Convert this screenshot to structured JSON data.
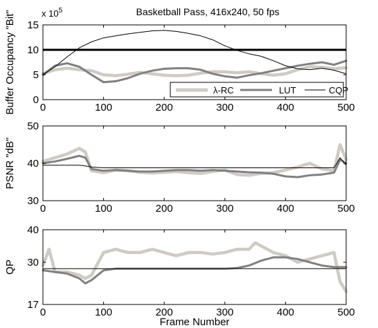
{
  "chart_data": [
    {
      "type": "line",
      "title": "Basketball Pass, 416x240, 50 fps",
      "ylabel": "Buffer Occupancy \"Bit\"",
      "xlabel": "",
      "scale_label": "x 10",
      "scale_exponent": "5",
      "xlim": [
        0,
        500
      ],
      "ylim": [
        0,
        15
      ],
      "xticks": [
        "0",
        "100",
        "200",
        "300",
        "400",
        "500"
      ],
      "yticks": [
        "0",
        "5",
        "10",
        "15"
      ],
      "legend": "bottom-right",
      "reference_line": 10,
      "series": [
        {
          "name": "λ-RC",
          "color": "#cfcbc4",
          "x": [
            0,
            20,
            40,
            60,
            80,
            100,
            120,
            140,
            160,
            180,
            200,
            220,
            240,
            260,
            280,
            300,
            320,
            340,
            360,
            380,
            400,
            420,
            440,
            460,
            480,
            500
          ],
          "y": [
            5.2,
            6.0,
            6.3,
            6.0,
            5.8,
            5.0,
            4.8,
            5.1,
            5.5,
            5.2,
            4.9,
            4.8,
            4.9,
            5.3,
            5.6,
            5.6,
            5.4,
            5.6,
            5.2,
            4.9,
            5.2,
            6.0,
            6.6,
            6.5,
            6.2,
            6.4
          ]
        },
        {
          "name": "LUT",
          "color": "#808080",
          "x": [
            0,
            20,
            40,
            60,
            80,
            100,
            120,
            140,
            160,
            180,
            200,
            220,
            240,
            260,
            280,
            300,
            320,
            340,
            360,
            380,
            400,
            420,
            440,
            460,
            480,
            500
          ],
          "y": [
            5.0,
            6.8,
            7.3,
            6.6,
            5.0,
            3.5,
            3.7,
            4.3,
            5.2,
            5.8,
            6.2,
            6.3,
            6.3,
            6.0,
            5.2,
            4.7,
            4.4,
            4.9,
            5.3,
            5.8,
            6.3,
            6.8,
            7.2,
            7.5,
            7.0,
            7.8
          ]
        },
        {
          "name": "CQP",
          "color": "#000000",
          "x": [
            0,
            20,
            40,
            60,
            80,
            100,
            120,
            140,
            160,
            180,
            200,
            220,
            240,
            260,
            280,
            300,
            320,
            340,
            360,
            380,
            400,
            420,
            440,
            460,
            480,
            500
          ],
          "y": [
            5.0,
            6.6,
            8.6,
            10.4,
            11.6,
            12.4,
            12.8,
            13.2,
            13.5,
            13.8,
            13.9,
            13.7,
            13.3,
            12.8,
            12.0,
            10.8,
            9.9,
            9.2,
            8.7,
            7.8,
            6.8,
            6.2,
            6.0,
            6.3,
            5.9,
            5.2
          ]
        }
      ]
    },
    {
      "type": "line",
      "title": "",
      "ylabel": "PSNR \"dB\"",
      "xlabel": "",
      "xlim": [
        0,
        500
      ],
      "ylim": [
        30,
        50
      ],
      "xticks": [
        "0",
        "100",
        "200",
        "300",
        "400",
        "500"
      ],
      "yticks": [
        "30",
        "40",
        "50"
      ],
      "series": [
        {
          "name": "λ-RC",
          "color": "#cfcbc4",
          "x": [
            0,
            20,
            40,
            60,
            70,
            80,
            100,
            120,
            140,
            160,
            180,
            200,
            220,
            240,
            260,
            280,
            300,
            320,
            340,
            360,
            380,
            400,
            420,
            440,
            460,
            480,
            490,
            500
          ],
          "y": [
            40.5,
            41.5,
            42.5,
            44.0,
            43.0,
            38.0,
            37.5,
            38.2,
            38.0,
            37.6,
            37.4,
            37.6,
            37.8,
            37.5,
            37.3,
            37.8,
            38.2,
            37.0,
            36.8,
            37.3,
            37.5,
            38.2,
            39.0,
            40.0,
            38.5,
            38.0,
            45.0,
            41.0
          ]
        },
        {
          "name": "LUT",
          "color": "#808080",
          "x": [
            0,
            20,
            40,
            60,
            70,
            80,
            100,
            120,
            140,
            160,
            180,
            200,
            220,
            240,
            260,
            280,
            300,
            320,
            340,
            360,
            380,
            400,
            420,
            440,
            460,
            480,
            490,
            500
          ],
          "y": [
            40.0,
            40.5,
            41.2,
            42.0,
            41.5,
            38.5,
            38.0,
            38.2,
            38.0,
            37.8,
            37.8,
            38.0,
            38.2,
            38.2,
            38.0,
            38.2,
            38.0,
            37.8,
            37.6,
            37.5,
            37.2,
            36.5,
            36.3,
            36.8,
            37.0,
            37.5,
            41.0,
            40.0
          ]
        },
        {
          "name": "CQP",
          "color": "#000000",
          "x": [
            0,
            20,
            40,
            60,
            70,
            80,
            100,
            120,
            140,
            160,
            180,
            200,
            220,
            240,
            260,
            280,
            300,
            320,
            340,
            360,
            380,
            400,
            420,
            440,
            460,
            480,
            490,
            500
          ],
          "y": [
            39.5,
            39.5,
            39.5,
            39.5,
            39.3,
            39.0,
            38.8,
            38.8,
            38.8,
            38.8,
            38.8,
            38.8,
            38.8,
            38.8,
            38.8,
            38.8,
            38.8,
            38.8,
            38.8,
            38.8,
            38.8,
            38.8,
            38.8,
            38.8,
            38.8,
            38.8,
            41.5,
            39.5
          ]
        }
      ]
    },
    {
      "type": "line",
      "title": "",
      "ylabel": "QP",
      "xlabel": "Frame Number",
      "xlim": [
        0,
        500
      ],
      "ylim": [
        17,
        40
      ],
      "xticks": [
        "0",
        "100",
        "200",
        "300",
        "400",
        "500"
      ],
      "yticks": [
        "17",
        "30",
        "40"
      ],
      "series": [
        {
          "name": "λ-RC",
          "color": "#cfcbc4",
          "x": [
            0,
            10,
            20,
            40,
            60,
            70,
            80,
            100,
            120,
            140,
            160,
            180,
            200,
            220,
            240,
            260,
            280,
            300,
            320,
            340,
            350,
            360,
            380,
            400,
            420,
            440,
            460,
            480,
            490,
            500
          ],
          "y": [
            29.0,
            34.0,
            27.0,
            27.0,
            26.0,
            25.0,
            26.0,
            33.0,
            34.0,
            33.0,
            33.0,
            34.0,
            33.0,
            32.0,
            33.0,
            33.0,
            32.5,
            33.0,
            34.0,
            34.0,
            36.0,
            35.0,
            33.0,
            32.0,
            30.0,
            31.0,
            32.0,
            33.0,
            24.0,
            21.0
          ]
        },
        {
          "name": "LUT",
          "color": "#808080",
          "x": [
            0,
            20,
            40,
            60,
            70,
            80,
            100,
            120,
            140,
            160,
            180,
            200,
            220,
            240,
            260,
            280,
            300,
            320,
            340,
            360,
            380,
            400,
            420,
            440,
            460,
            480,
            500
          ],
          "y": [
            27.5,
            27.0,
            26.5,
            25.0,
            23.5,
            24.5,
            27.5,
            28.0,
            28.0,
            28.0,
            28.0,
            28.0,
            28.0,
            28.0,
            28.0,
            28.0,
            28.0,
            28.2,
            29.0,
            30.5,
            31.5,
            31.5,
            31.0,
            30.0,
            29.0,
            28.5,
            28.5
          ]
        },
        {
          "name": "CQP",
          "color": "#000000",
          "x": [
            0,
            500
          ],
          "y": [
            28.0,
            28.0
          ]
        }
      ]
    }
  ]
}
